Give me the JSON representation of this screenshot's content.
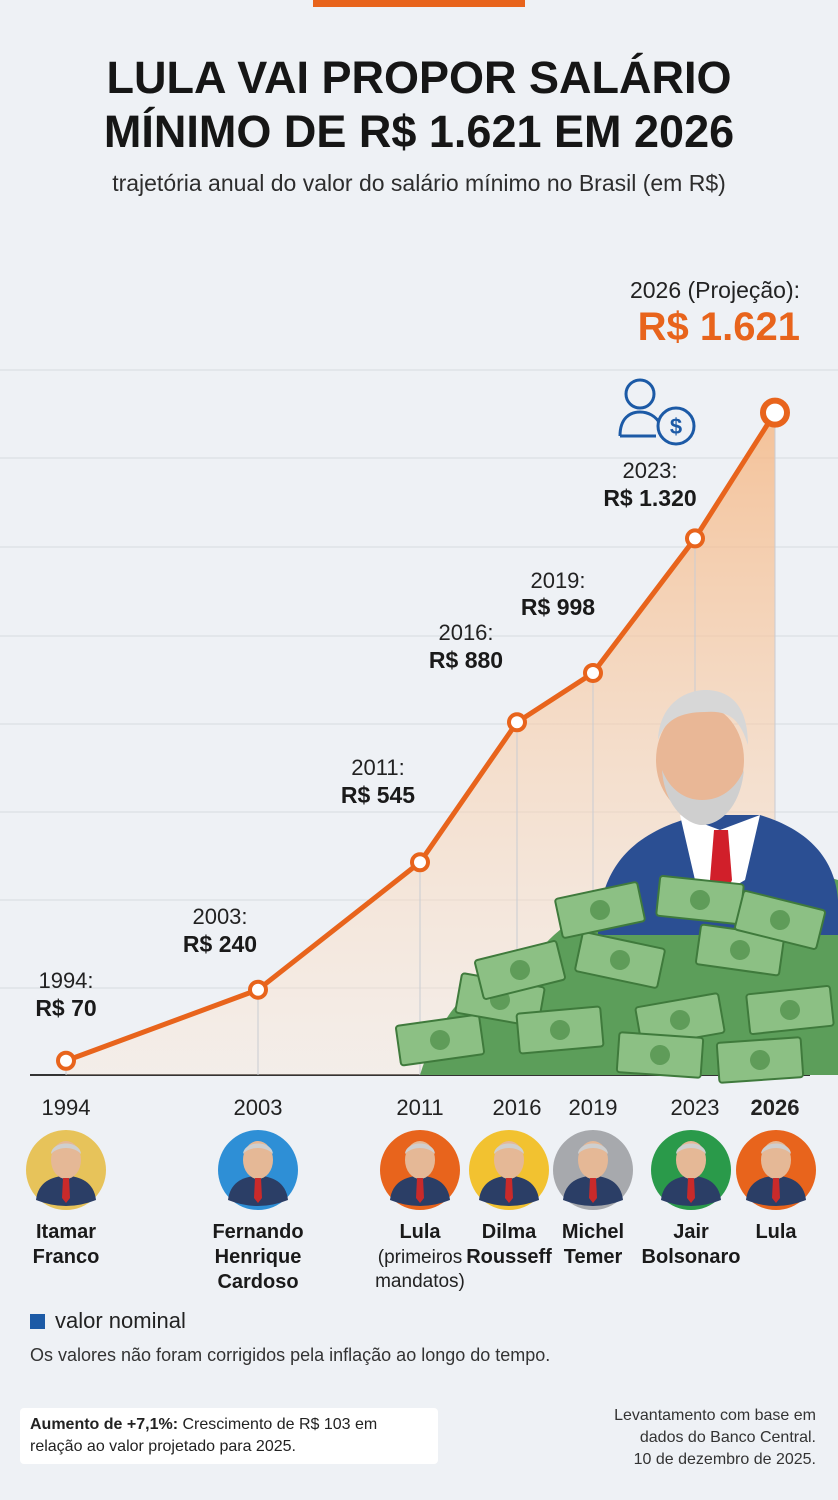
{
  "title_line1": "LULA VAI PROPOR SALÁRIO",
  "title_line2": "MÍNIMO DE R$ 1.621 EM 2026",
  "subtitle": "trajetória anual do valor do salário mínimo no Brasil (em R$)",
  "chart_data": {
    "type": "line",
    "x": [
      1994,
      2003,
      2011,
      2016,
      2019,
      2023,
      2026
    ],
    "values": [
      70,
      240,
      545,
      880,
      998,
      1320,
      1621
    ],
    "tick_labels": [
      "1994",
      "2003",
      "2011",
      "2016",
      "2019",
      "2023",
      "2026"
    ],
    "point_labels": [
      {
        "year": "1994:",
        "value": "R$ 70"
      },
      {
        "year": "2003:",
        "value": "R$ 240"
      },
      {
        "year": "2011:",
        "value": "R$ 545"
      },
      {
        "year": "2016:",
        "value": "R$ 880"
      },
      {
        "year": "2019:",
        "value": "R$ 998"
      },
      {
        "year": "2023:",
        "value": "R$ 1.320"
      },
      {
        "year": "2026 (Projeção):",
        "value": "R$ 1.621"
      }
    ],
    "presidents": [
      {
        "lines": [
          "Itamar",
          "Franco"
        ],
        "color": "#e7c35a"
      },
      {
        "lines": [
          "Fernando",
          "Henrique",
          "Cardoso"
        ],
        "color": "#2e8fd6"
      },
      {
        "lines": [
          "Lula"
        ],
        "sub": [
          "(primeiros",
          "mandatos)"
        ],
        "color": "#e8641c"
      },
      {
        "lines": [
          "Dilma",
          "Rousseff"
        ],
        "color": "#f2c230"
      },
      {
        "lines": [
          "Michel",
          "Temer"
        ],
        "color": "#a7a9ad"
      },
      {
        "lines": [
          "Jair",
          "Bolsonaro"
        ],
        "color": "#2a9a4a"
      },
      {
        "lines": [
          "Lula"
        ],
        "color": "#e8641c"
      }
    ],
    "line_color": "#e8641c",
    "grid": true
  },
  "legend_label": "valor nominal",
  "note": "Os valores não foram corrigidos pela inflação ao longo do tempo.",
  "increase_bold": "Aumento de +7,1%:",
  "increase_text": " Crescimento de R$ 103 em relação ao valor projetado para 2025.",
  "source_line1": "Levantamento com base em",
  "source_line2": "dados do Banco Central.",
  "source_line3": "10 de dezembro de 2025."
}
